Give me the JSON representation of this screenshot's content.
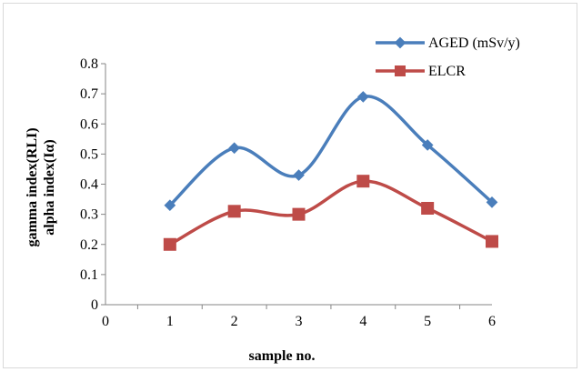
{
  "chart_data": {
    "type": "line",
    "title": "",
    "xlabel": "sample no.",
    "ylabel_lines": [
      "gamma index(RLI)",
      "alpha index(Iα)"
    ],
    "x": [
      1,
      2,
      3,
      4,
      5,
      6
    ],
    "x_ticks": [
      "0",
      "1",
      "2",
      "3",
      "4",
      "5",
      "6"
    ],
    "xlim": [
      0,
      6
    ],
    "y_ticks": [
      "0",
      "0.1",
      "0.2",
      "0.3",
      "0.4",
      "0.5",
      "0.6",
      "0.7",
      "0.8"
    ],
    "ylim": [
      0,
      0.8
    ],
    "grid": false,
    "legend_position": "top-right",
    "smoothed": true,
    "series": [
      {
        "name": "AGED (mSv/y)",
        "values": [
          0.33,
          0.52,
          0.43,
          0.69,
          0.53,
          0.34
        ],
        "color": "#4a7ebb",
        "marker": "diamond"
      },
      {
        "name": "ELCR",
        "values": [
          0.2,
          0.31,
          0.3,
          0.41,
          0.32,
          0.21
        ],
        "color": "#be4b48",
        "marker": "square"
      }
    ]
  }
}
